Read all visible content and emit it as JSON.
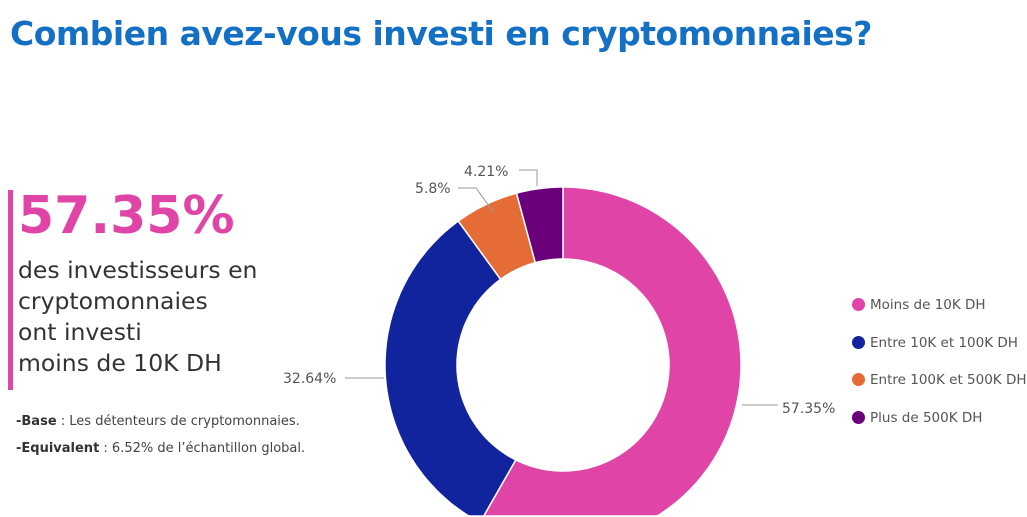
{
  "title": "Combien avez-vous investi en cryptomonnaies?",
  "highlight": {
    "value": "57.35%",
    "text": "des investisseurs en cryptomonnaies ont investi moins de 10K DH",
    "lines": [
      "des investisseurs en",
      "cryptomonnaies",
      "ont investi",
      "moins de 10K DH"
    ]
  },
  "notes": [
    {
      "label": "-Base",
      "text": " : Les détenteurs de cryptomonnaies."
    },
    {
      "label": "-Equivalent",
      "text": " :  6.52% de l’échantillon global."
    }
  ],
  "chart_data": {
    "type": "donut",
    "categories": [
      "Moins de 10K DH",
      "Entre 10K et 100K DH",
      "Entre 100K et 500K DH",
      "Plus de 500K DH"
    ],
    "values": [
      57.35,
      32.64,
      5.8,
      4.21
    ],
    "labels": [
      "57.35%",
      "32.64%",
      "5.8%",
      "4.21%"
    ],
    "colors": [
      "#E044A7",
      "#12239E",
      "#E66C37",
      "#6B007B"
    ],
    "legend_position": "right"
  }
}
